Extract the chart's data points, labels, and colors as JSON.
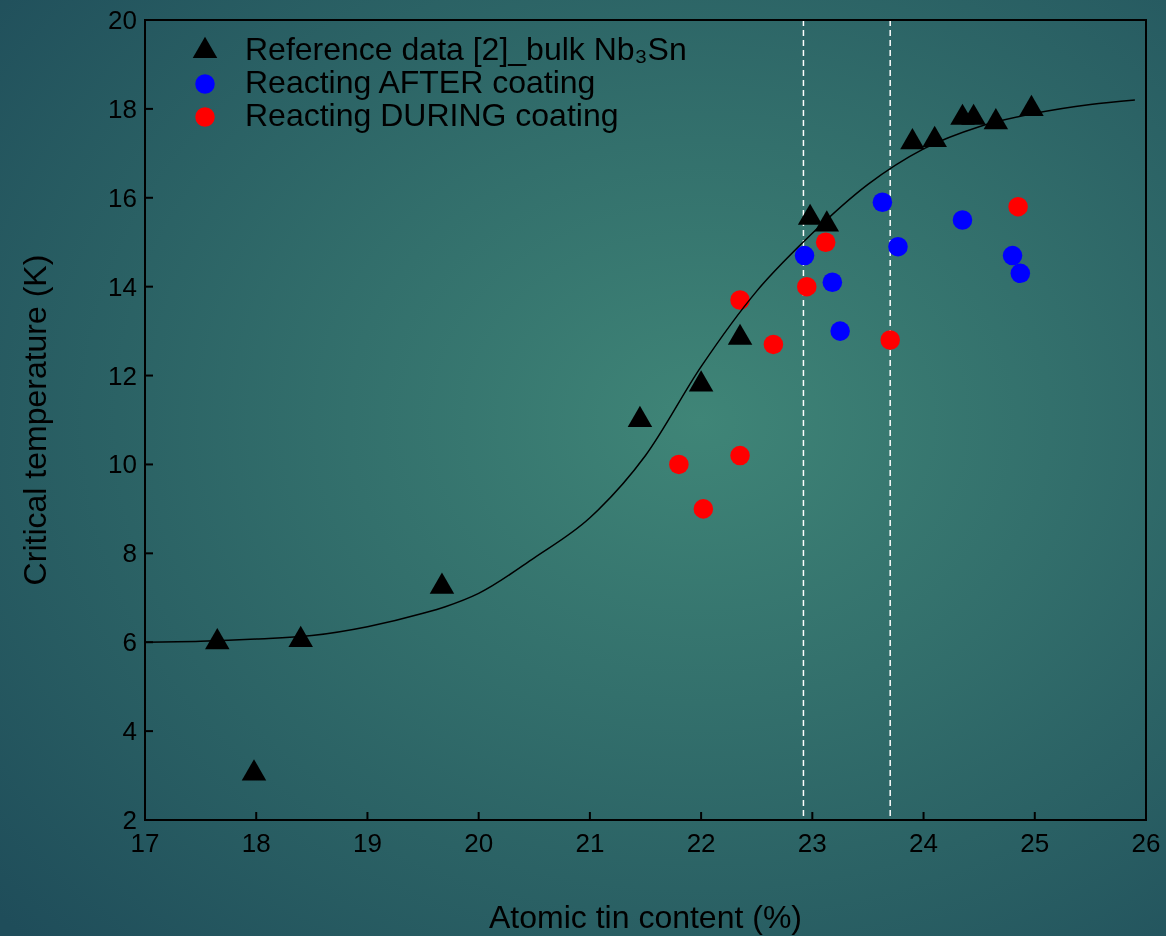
{
  "chart_data": {
    "type": "scatter",
    "xlabel": "Atomic tin content (%)",
    "ylabel": "Critical temperature (K)",
    "xlim": [
      17,
      26
    ],
    "ylim": [
      2,
      20
    ],
    "xticks": [
      17,
      18,
      19,
      20,
      21,
      22,
      23,
      24,
      25,
      26
    ],
    "yticks": [
      2,
      4,
      6,
      8,
      10,
      12,
      14,
      16,
      18,
      20
    ],
    "legend": "top left",
    "grid": false,
    "series": [
      {
        "name": "Reference data [2]_bulk Nb₃Sn",
        "color": "#000000",
        "marker": "triangle",
        "x": [
          17.65,
          17.98,
          18.4,
          19.67,
          21.45,
          22.0,
          22.35,
          22.98,
          23.13,
          23.9,
          24.1,
          24.35,
          24.45,
          24.65,
          24.97
        ],
        "values": [
          6.0,
          3.05,
          6.05,
          7.25,
          11.0,
          11.8,
          12.85,
          15.55,
          15.4,
          17.25,
          17.3,
          17.8,
          17.8,
          17.7,
          18.0
        ]
      },
      {
        "name": "Reacting AFTER coating",
        "color": "#0000ff",
        "marker": "circle",
        "x": [
          22.93,
          23.18,
          23.25,
          23.63,
          23.77,
          24.35,
          24.8,
          24.87
        ],
        "values": [
          14.7,
          14.1,
          13.0,
          15.9,
          14.9,
          15.5,
          14.7,
          14.3
        ]
      },
      {
        "name": "Reacting DURING coating",
        "color": "#ff0000",
        "marker": "circle",
        "x": [
          21.8,
          22.02,
          22.35,
          22.35,
          22.65,
          22.95,
          23.12,
          23.7,
          24.85
        ],
        "values": [
          10.0,
          9.0,
          13.7,
          10.2,
          12.7,
          14.0,
          15.0,
          12.8,
          15.8
        ]
      },
      {
        "type": "line",
        "color": "#000000",
        "marker": "none",
        "line_style": "solid",
        "x": [
          17,
          17.5,
          18,
          18.5,
          19,
          19.5,
          19.7,
          20,
          20.5,
          21,
          21.5,
          22,
          22.5,
          23,
          23.5,
          24,
          24.5,
          25,
          25.5,
          25.9
        ],
        "values": [
          6.0,
          6.02,
          6.07,
          6.15,
          6.35,
          6.65,
          6.8,
          7.1,
          7.9,
          8.8,
          10.2,
          12.2,
          13.9,
          15.2,
          16.3,
          17.1,
          17.6,
          17.9,
          18.1,
          18.2
        ]
      }
    ],
    "ref_lines": [
      {
        "axis": "x",
        "value": 22.92,
        "color": "#ffffff",
        "line_style": "dashed"
      },
      {
        "axis": "x",
        "value": 23.7,
        "color": "#ffffff",
        "line_style": "dashed"
      }
    ]
  }
}
